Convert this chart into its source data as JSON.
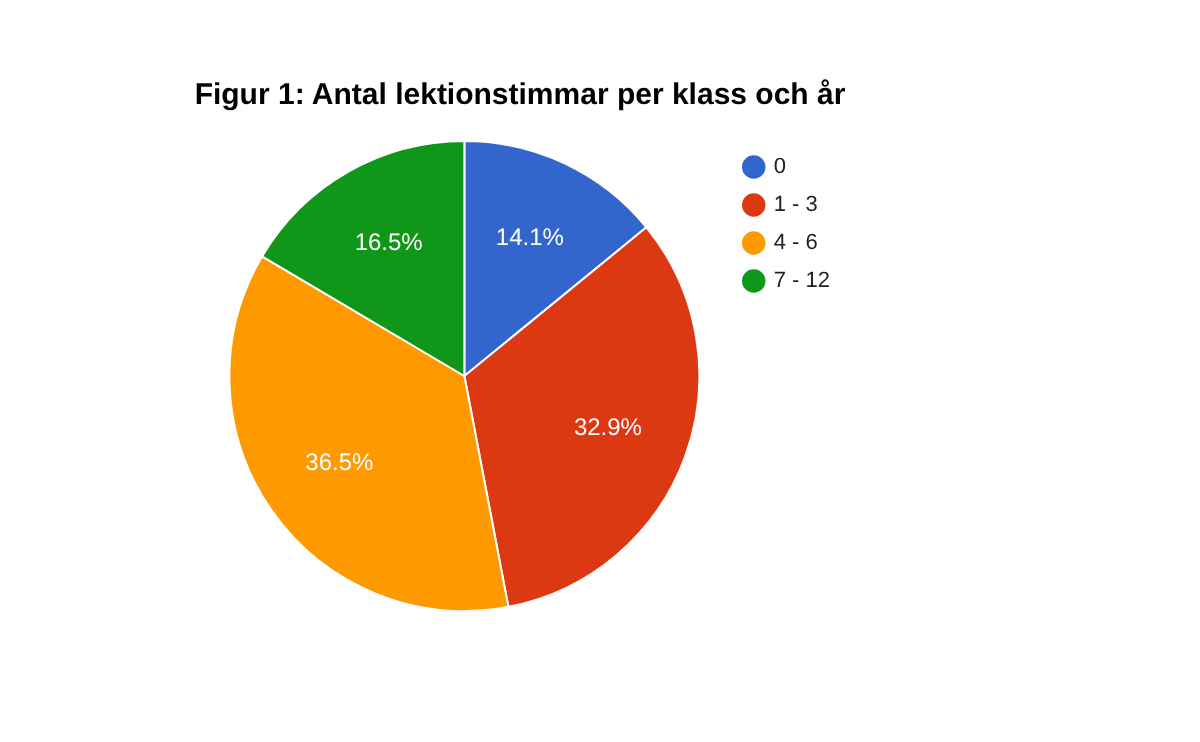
{
  "chart_data": {
    "type": "pie",
    "title": "Figur 1: Antal lektionstimmar per klass och år",
    "categories": [
      "0",
      "1 - 3",
      "4 - 6",
      "7 - 12"
    ],
    "values": [
      14.1,
      32.9,
      36.5,
      16.5
    ],
    "colors": [
      "#3366cc",
      "#dc3912",
      "#ff9900",
      "#109618"
    ],
    "value_labels": [
      "14.1%",
      "32.9%",
      "36.5%",
      "16.5%"
    ],
    "legend": "right"
  }
}
